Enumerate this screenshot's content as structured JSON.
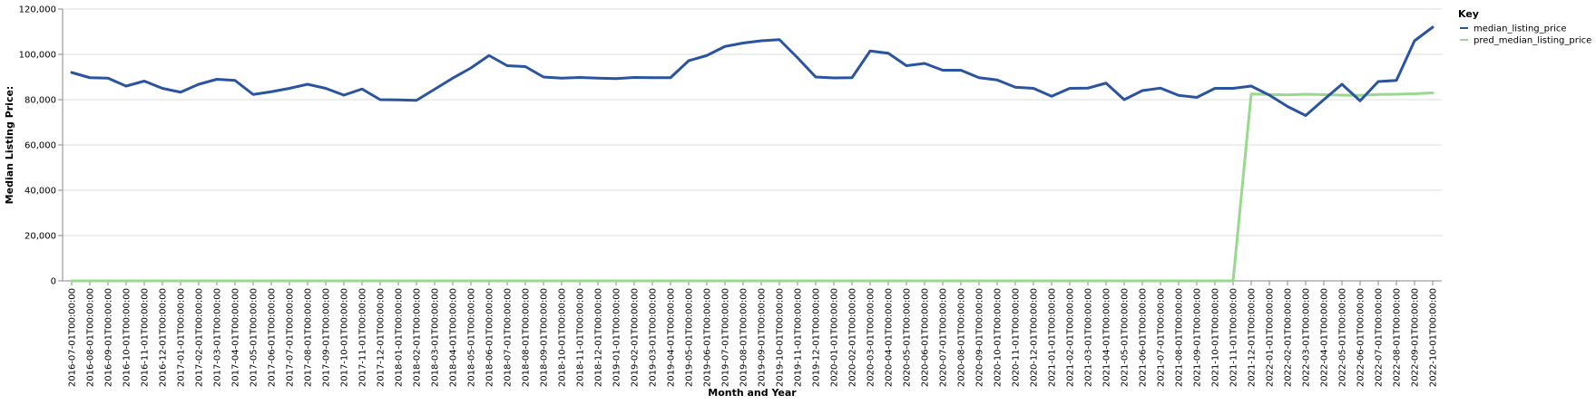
{
  "chart_data": {
    "type": "line",
    "xlabel": "Month and Year",
    "ylabel": "Median Listing Price:",
    "ylim": [
      0,
      120000
    ],
    "yticks": [
      "0",
      "20,000",
      "40,000",
      "60,000",
      "80,000",
      "100,000",
      "120,000"
    ],
    "ytick_values": [
      0,
      20000,
      40000,
      60000,
      80000,
      100000,
      120000
    ],
    "grid": true,
    "legend": {
      "title": "Key",
      "placement": "top-right"
    },
    "categories": [
      "2016-07-01T00:00:00",
      "2016-08-01T00:00:00",
      "2016-09-01T00:00:00",
      "2016-10-01T00:00:00",
      "2016-11-01T00:00:00",
      "2016-12-01T00:00:00",
      "2017-01-01T00:00:00",
      "2017-02-01T00:00:00",
      "2017-03-01T00:00:00",
      "2017-04-01T00:00:00",
      "2017-05-01T00:00:00",
      "2017-06-01T00:00:00",
      "2017-07-01T00:00:00",
      "2017-08-01T00:00:00",
      "2017-09-01T00:00:00",
      "2017-10-01T00:00:00",
      "2017-11-01T00:00:00",
      "2017-12-01T00:00:00",
      "2018-01-01T00:00:00",
      "2018-02-01T00:00:00",
      "2018-03-01T00:00:00",
      "2018-04-01T00:00:00",
      "2018-05-01T00:00:00",
      "2018-06-01T00:00:00",
      "2018-07-01T00:00:00",
      "2018-08-01T00:00:00",
      "2018-09-01T00:00:00",
      "2018-10-01T00:00:00",
      "2018-11-01T00:00:00",
      "2018-12-01T00:00:00",
      "2019-01-01T00:00:00",
      "2019-02-01T00:00:00",
      "2019-03-01T00:00:00",
      "2019-04-01T00:00:00",
      "2019-05-01T00:00:00",
      "2019-06-01T00:00:00",
      "2019-07-01T00:00:00",
      "2019-08-01T00:00:00",
      "2019-09-01T00:00:00",
      "2019-10-01T00:00:00",
      "2019-11-01T00:00:00",
      "2019-12-01T00:00:00",
      "2020-01-01T00:00:00",
      "2020-02-01T00:00:00",
      "2020-03-01T00:00:00",
      "2020-04-01T00:00:00",
      "2020-05-01T00:00:00",
      "2020-06-01T00:00:00",
      "2020-07-01T00:00:00",
      "2020-08-01T00:00:00",
      "2020-09-01T00:00:00",
      "2020-10-01T00:00:00",
      "2020-11-01T00:00:00",
      "2020-12-01T00:00:00",
      "2021-01-01T00:00:00",
      "2021-02-01T00:00:00",
      "2021-03-01T00:00:00",
      "2021-04-01T00:00:00",
      "2021-05-01T00:00:00",
      "2021-06-01T00:00:00",
      "2021-07-01T00:00:00",
      "2021-08-01T00:00:00",
      "2021-09-01T00:00:00",
      "2021-10-01T00:00:00",
      "2021-11-01T00:00:00",
      "2021-12-01T00:00:00",
      "2022-01-01T00:00:00",
      "2022-02-01T00:00:00",
      "2022-03-01T00:00:00",
      "2022-04-01T00:00:00",
      "2022-05-01T00:00:00",
      "2022-06-01T00:00:00",
      "2022-07-01T00:00:00",
      "2022-08-01T00:00:00",
      "2022-09-01T00:00:00",
      "2022-10-01T00:00:00"
    ],
    "series": [
      {
        "name": "median_listing_price",
        "color": "#2a54a0",
        "values": [
          92000,
          89700,
          89500,
          86000,
          88200,
          85000,
          83300,
          86800,
          89000,
          88500,
          82300,
          83500,
          85000,
          86800,
          85000,
          82000,
          84700,
          80000,
          79900,
          79700,
          84600,
          89500,
          94000,
          99500,
          95000,
          94600,
          90000,
          89500,
          89800,
          89500,
          89300,
          89800,
          89700,
          89700,
          97200,
          99500,
          103500,
          105000,
          106000,
          106500,
          98500,
          90000,
          89600,
          89700,
          101500,
          100500,
          95000,
          96000,
          93000,
          93000,
          89700,
          88700,
          85500,
          85000,
          81500,
          85000,
          85100,
          87300,
          80000,
          84000,
          85100,
          81900,
          81000,
          85000,
          85000,
          86000,
          82000,
          77000,
          73000,
          80000,
          86800,
          79500,
          88000,
          88500,
          106000,
          112000
        ]
      },
      {
        "name": "pred_median_listing_price",
        "color": "#98d98e",
        "values": [
          0,
          0,
          0,
          0,
          0,
          0,
          0,
          0,
          0,
          0,
          0,
          0,
          0,
          0,
          0,
          0,
          0,
          0,
          0,
          0,
          0,
          0,
          0,
          0,
          0,
          0,
          0,
          0,
          0,
          0,
          0,
          0,
          0,
          0,
          0,
          0,
          0,
          0,
          0,
          0,
          0,
          0,
          0,
          0,
          0,
          0,
          0,
          0,
          0,
          0,
          0,
          0,
          0,
          0,
          0,
          0,
          0,
          0,
          0,
          0,
          0,
          0,
          0,
          0,
          0,
          82500,
          82300,
          82100,
          82400,
          82200,
          82000,
          81900,
          82300,
          82400,
          82600,
          83000
        ]
      }
    ]
  }
}
